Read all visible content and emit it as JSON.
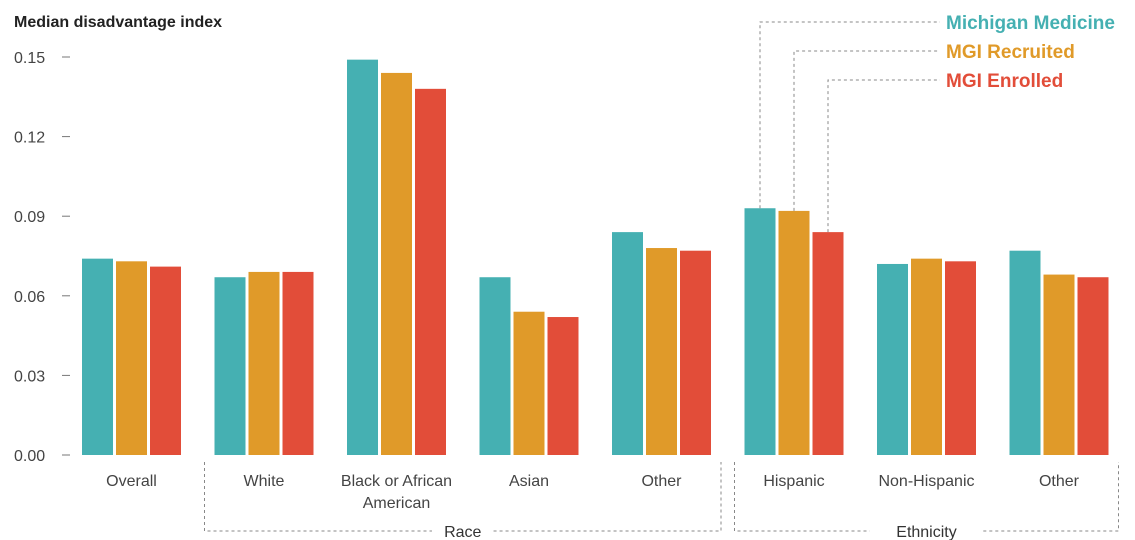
{
  "chart_data": {
    "type": "bar",
    "title": "",
    "ylabel": "Median disadvantage index",
    "xlabel": "",
    "ylim": [
      0,
      0.15
    ],
    "yticks": [
      "0.00",
      "0.03",
      "0.06",
      "0.09",
      "0.12",
      "0.15"
    ],
    "ytick_values": [
      0,
      0.03,
      0.06,
      0.09,
      0.12,
      0.15
    ],
    "categories": [
      [
        "Overall"
      ],
      [
        "White"
      ],
      [
        "Black or African",
        "American"
      ],
      [
        "Asian"
      ],
      [
        "Other"
      ],
      [
        "Hispanic"
      ],
      [
        "Non-Hispanic"
      ],
      [
        "Other"
      ]
    ],
    "series": [
      {
        "name": "Michigan Medicine",
        "color": "#45B0B2",
        "values": [
          0.074,
          0.067,
          0.149,
          0.067,
          0.084,
          0.093,
          0.072,
          0.077
        ]
      },
      {
        "name": "MGI Recruited",
        "color": "#E09A29",
        "values": [
          0.073,
          0.069,
          0.144,
          0.054,
          0.078,
          0.092,
          0.074,
          0.068
        ]
      },
      {
        "name": "MGI Enrolled",
        "color": "#E24D39",
        "values": [
          0.071,
          0.069,
          0.138,
          0.052,
          0.077,
          0.084,
          0.073,
          0.067
        ]
      }
    ],
    "groups": [
      {
        "label": "Race",
        "first": 1,
        "last": 4
      },
      {
        "label": "Ethnicity",
        "first": 5,
        "last": 7
      }
    ],
    "legend_placement": "top-right, leader lines to Hispanic bars",
    "grid": false
  }
}
